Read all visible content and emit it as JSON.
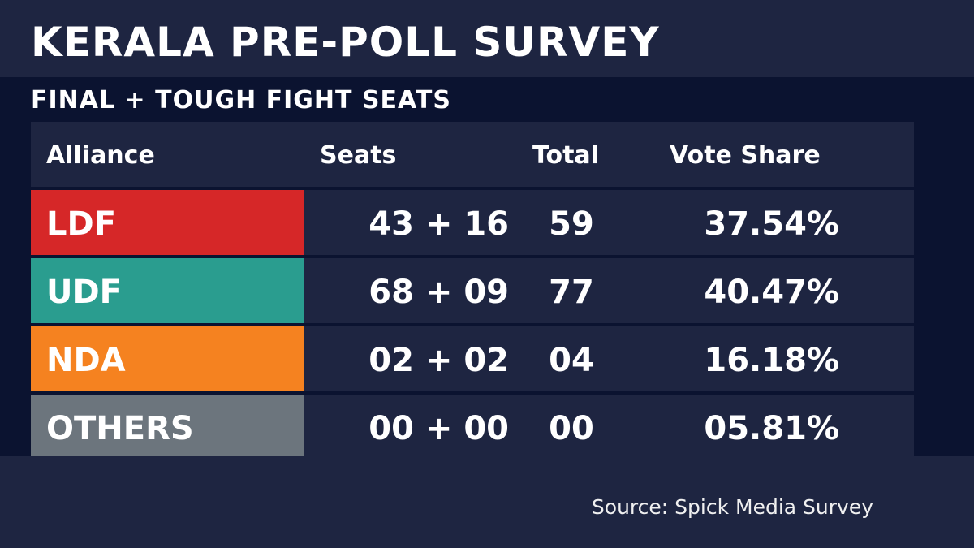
{
  "title": "KERALA PRE-POLL SURVEY",
  "subtitle": "FINAL + TOUGH FIGHT SEATS",
  "table": {
    "headers": {
      "alliance": "Alliance",
      "seats": "Seats",
      "total": "Total",
      "vote_share": "Vote Share"
    },
    "rows": [
      {
        "alliance": "LDF",
        "color": "#d62728",
        "seats": "43 + 16",
        "total": "59",
        "vote_share": "37.54%"
      },
      {
        "alliance": "UDF",
        "color": "#2a9d8f",
        "seats": "68 + 09",
        "total": "77",
        "vote_share": "40.47%"
      },
      {
        "alliance": "NDA",
        "color": "#f58220",
        "seats": "02 + 02",
        "total": "04",
        "vote_share": "16.18%"
      },
      {
        "alliance": "OTHERS",
        "color": "#6c757d",
        "seats": "00 + 00",
        "total": "00",
        "vote_share": "05.81%"
      }
    ]
  },
  "source": "Source: Spick Media Survey",
  "colors": {
    "background": "#0b1330",
    "panel": "#1e2541"
  }
}
